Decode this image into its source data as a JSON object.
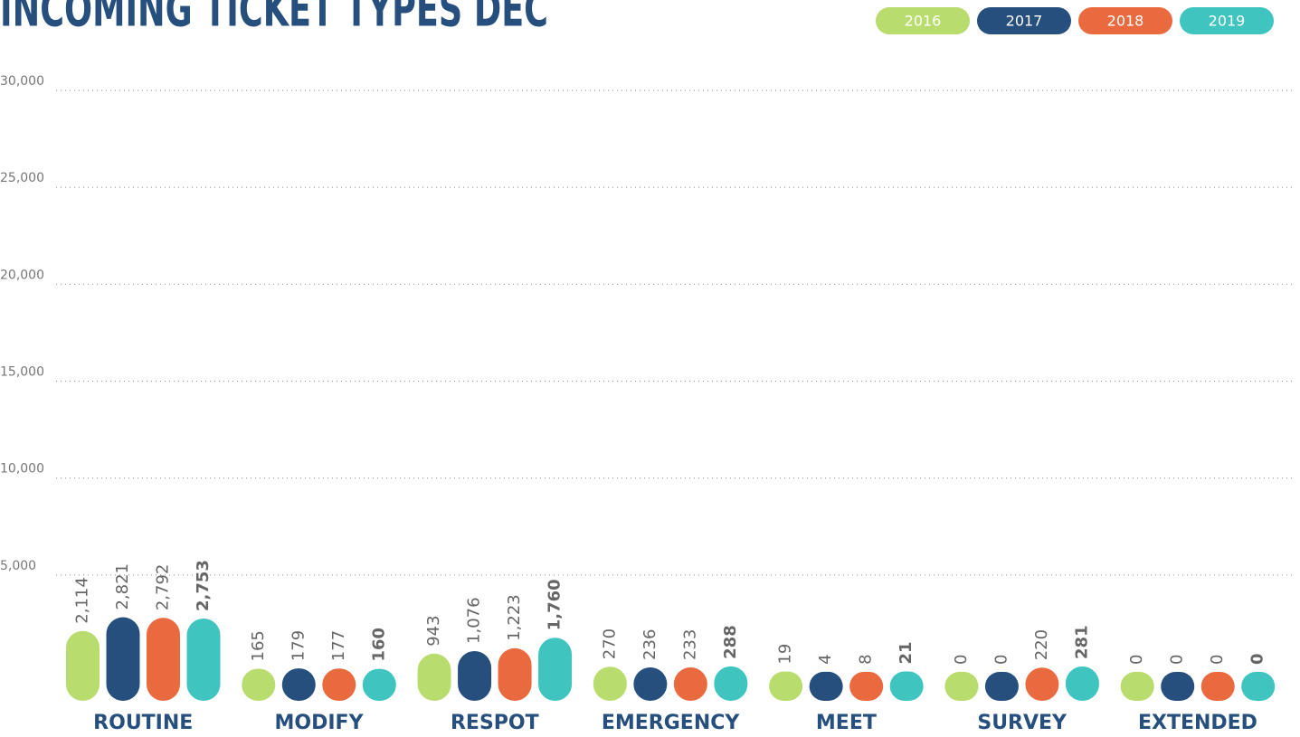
{
  "chart_data": {
    "type": "bar",
    "title": "INCOMING TICKET TYPES DEC",
    "categories": [
      "ROUTINE",
      "MODIFY",
      "RESPOT",
      "EMERGENCY",
      "MEET",
      "SURVEY",
      "EXTENDED"
    ],
    "series": [
      {
        "name": "2016",
        "color": "#b8dc6e",
        "values": [
          2114,
          165,
          943,
          270,
          19,
          0,
          0
        ],
        "value_labels": [
          "2,114",
          "165",
          "943",
          "270",
          "19",
          "0",
          "0"
        ]
      },
      {
        "name": "2017",
        "color": "#264f7e",
        "values": [
          2821,
          179,
          1076,
          236,
          4,
          0,
          0
        ],
        "value_labels": [
          "2,821",
          "179",
          "1,076",
          "236",
          "4",
          "0",
          "0"
        ]
      },
      {
        "name": "2018",
        "color": "#ea6a3f",
        "values": [
          2792,
          177,
          1223,
          233,
          8,
          220,
          0
        ],
        "value_labels": [
          "2,792",
          "177",
          "1,223",
          "233",
          "8",
          "220",
          "0"
        ]
      },
      {
        "name": "2019",
        "color": "#3fc4c0",
        "values": [
          2753,
          160,
          1760,
          288,
          21,
          281,
          0
        ],
        "value_labels": [
          "2,753",
          "160",
          "1,760",
          "288",
          "21",
          "281",
          "0"
        ],
        "bold_labels": true
      }
    ],
    "ylim": [
      0,
      30000
    ],
    "yticks": [
      {
        "value": 5000,
        "label": "5,000"
      },
      {
        "value": 10000,
        "label": "10,000"
      },
      {
        "value": 15000,
        "label": "15,000"
      },
      {
        "value": 20000,
        "label": "20,000"
      },
      {
        "value": 25000,
        "label": "25,000"
      },
      {
        "value": 30000,
        "label": "30,000"
      }
    ],
    "grid": true,
    "legend": "top-right"
  }
}
